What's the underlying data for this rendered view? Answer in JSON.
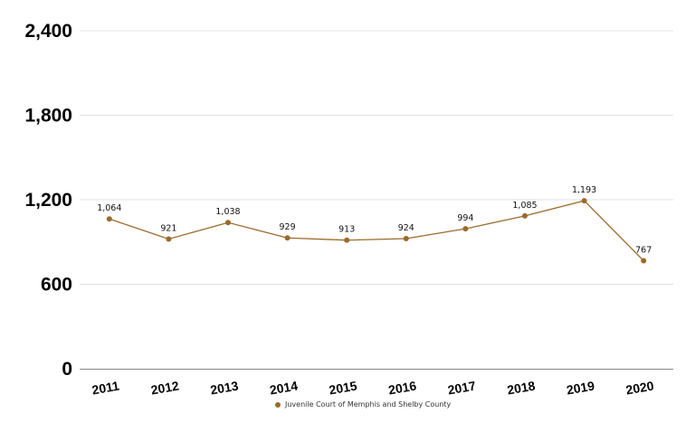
{
  "chart_data": {
    "type": "line",
    "title": "",
    "xlabel": "",
    "ylabel": "",
    "categories": [
      "2011",
      "2012",
      "2013",
      "2014",
      "2015",
      "2016",
      "2017",
      "2018",
      "2019",
      "2020"
    ],
    "series": [
      {
        "name": "Juvenile Court of Memphis and Shelby County",
        "values": [
          1064,
          921,
          1038,
          929,
          913,
          924,
          994,
          1085,
          1193,
          767
        ],
        "labels": [
          "1,064",
          "921",
          "1,038",
          "929",
          "913",
          "924",
          "994",
          "1,085",
          "1,193",
          "767"
        ],
        "color": "#9a6a2c"
      }
    ],
    "ylim": [
      0,
      2400
    ],
    "yticks": [
      0,
      600,
      1200,
      1800,
      2400
    ],
    "ytick_labels": [
      "0",
      "600",
      "1,200",
      "1,800",
      "2,400"
    ],
    "grid": true,
    "legend_position": "bottom"
  }
}
